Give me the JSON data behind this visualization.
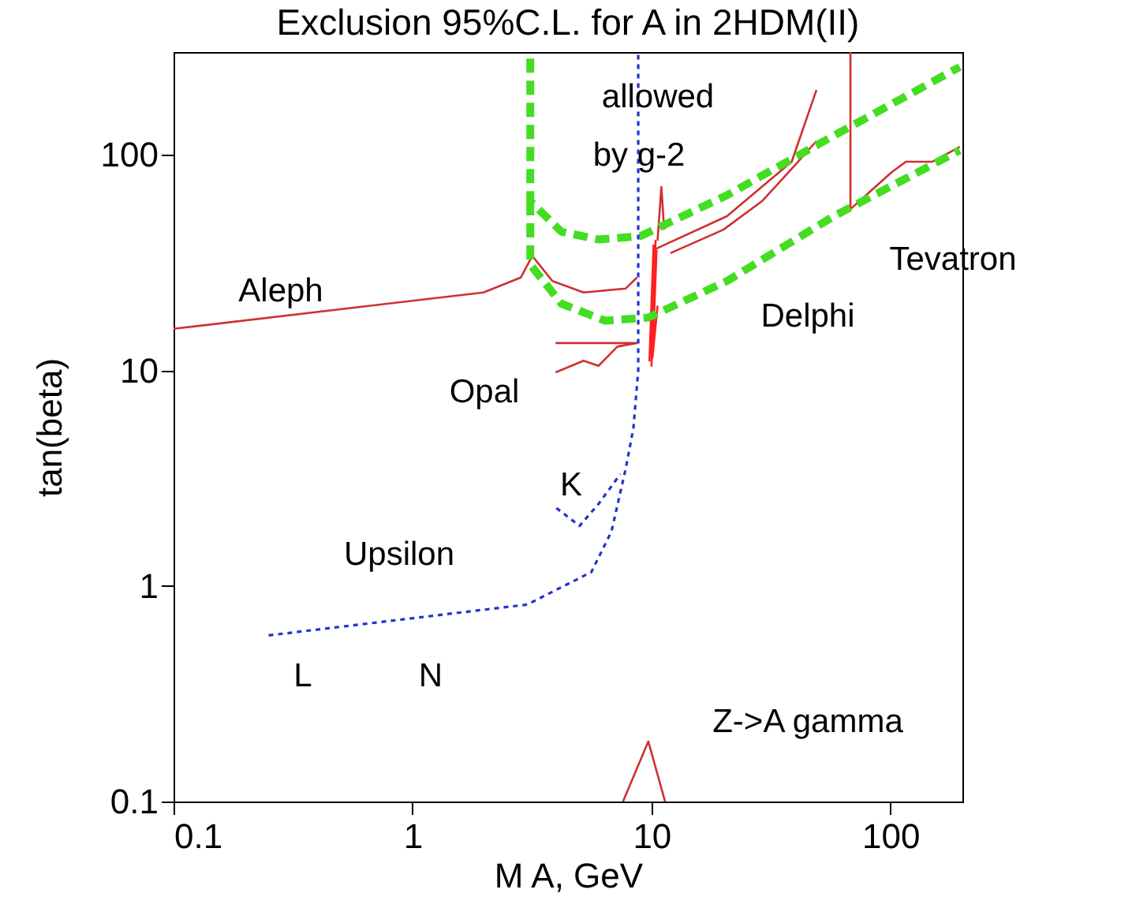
{
  "chart_data": {
    "type": "line",
    "title": "Exclusion 95%C.L.  for  A in 2HDM(II)",
    "xlabel": "M A, GeV",
    "ylabel": "tan(beta)",
    "log": "xy",
    "grid": false,
    "xlim": [
      0.1,
      200
    ],
    "ylim": [
      0.1,
      300
    ],
    "xticks": [
      0.1,
      1,
      10,
      100
    ],
    "yticks": [
      0.1,
      1,
      10,
      100
    ],
    "series": [
      {
        "color": "#d03030",
        "line_style": "solid",
        "x": [
          0.1,
          1.98,
          2.84,
          3.17,
          3.85,
          5.2,
          7.8,
          8.7
        ],
        "values": [
          15.6,
          23,
          27,
          34,
          26,
          23,
          24,
          27
        ]
      },
      {
        "color": "#d03030",
        "line_style": "solid",
        "x": [
          10.4,
          20.7,
          38.6,
          49
        ],
        "values": [
          36.6,
          52,
          93,
          200
        ]
      },
      {
        "color": "#d03030",
        "line_style": "solid",
        "x": [
          12,
          20,
          29,
          40,
          49
        ],
        "values": [
          35,
          45,
          61,
          90,
          116
        ]
      },
      {
        "color": "#d03030",
        "line_style": "solid",
        "x": [
          10.6,
          11,
          11.3
        ],
        "values": [
          40,
          71,
          45
        ]
      },
      {
        "color": "#d03030",
        "line_style": "solid",
        "x": [
          68,
          68,
          101,
          116,
          150,
          195
        ],
        "values": [
          300,
          56,
          83,
          93,
          93,
          109
        ]
      },
      {
        "color": "#d03030",
        "line_style": "solid",
        "x": [
          3.97,
          8.7
        ],
        "values": [
          13.4,
          13.4
        ]
      },
      {
        "color": "#d03030",
        "line_style": "solid",
        "x": [
          3.97,
          5.2,
          6,
          7.2,
          8.7
        ],
        "values": [
          9.8,
          11.1,
          10.5,
          12.9,
          13.4
        ]
      },
      {
        "color": "#ff2020",
        "line_style": "solid",
        "x": [
          9.8,
          10.2,
          9.9,
          10.4,
          10,
          10.5,
          10.1,
          10.6
        ],
        "values": [
          11,
          38,
          12,
          40,
          10.5,
          36,
          11.5,
          20
        ]
      },
      {
        "color": "#d03030",
        "line_style": "solid",
        "x": [
          7.6,
          9.7,
          11.4
        ],
        "values": [
          0.1,
          0.19,
          0.1
        ]
      },
      {
        "color": "#44dd22",
        "line_style": "dashed",
        "x": [
          3.11,
          3.11,
          4.2,
          6,
          9,
          20.7,
          58,
          195
        ],
        "values": [
          280,
          61,
          44,
          40.5,
          42,
          65,
          123,
          256
        ]
      },
      {
        "color": "#44dd22",
        "line_style": "dashed",
        "x": [
          3.11,
          3.11,
          4.2,
          6.4,
          9.7,
          20.7,
          58,
          195
        ],
        "values": [
          61,
          31,
          20.4,
          17,
          17.6,
          26,
          52,
          105
        ]
      },
      {
        "color": "#2233cc",
        "line_style": "dotted",
        "x": [
          0.25,
          3.02,
          5.6,
          6.8,
          7.8,
          8.4,
          8.8,
          8.8
        ],
        "values": [
          0.59,
          0.82,
          1.16,
          1.79,
          3.5,
          5.4,
          10,
          300
        ]
      },
      {
        "color": "#2233cc",
        "line_style": "dotted",
        "x": [
          4,
          5,
          6,
          7.4
        ],
        "values": [
          2.3,
          1.9,
          2.4,
          3.3
        ]
      }
    ],
    "annotations": [
      "Aleph",
      "Delphi",
      "Tevatron",
      "Opal",
      "allowed",
      "by g-2",
      "K",
      "Upsilon",
      "L",
      "N",
      "Z->A gamma"
    ]
  }
}
